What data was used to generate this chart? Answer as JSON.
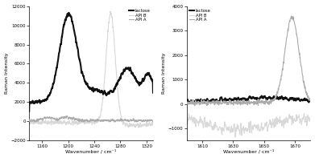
{
  "left_panel": {
    "xlim": [
      1140,
      1330
    ],
    "ylim": [
      -2000,
      12000
    ],
    "yticks": [
      -2000,
      0,
      2000,
      4000,
      6000,
      8000,
      10000,
      12000
    ],
    "xticks": [
      1160,
      1200,
      1240,
      1280,
      1320
    ],
    "xlabel": "Wavenumber / cm⁻¹",
    "ylabel": "Raman Intensity"
  },
  "right_panel": {
    "xlim": [
      1600,
      1680
    ],
    "ylim": [
      -1500,
      4000
    ],
    "yticks": [
      -1000,
      0,
      1000,
      2000,
      3000,
      4000
    ],
    "xticks": [
      1610,
      1630,
      1650,
      1670
    ],
    "xlabel": "Wavenumber / cm⁻¹",
    "ylabel": "Raman Intensity"
  },
  "legend": [
    "lactose",
    "API B",
    "API A"
  ],
  "colors": {
    "lactose": "#111111",
    "api_b": "#d8d8d8",
    "api_a": "#aaaaaa"
  },
  "linewidths": {
    "lactose": 1.5,
    "api_b": 0.8,
    "api_a": 0.8
  }
}
